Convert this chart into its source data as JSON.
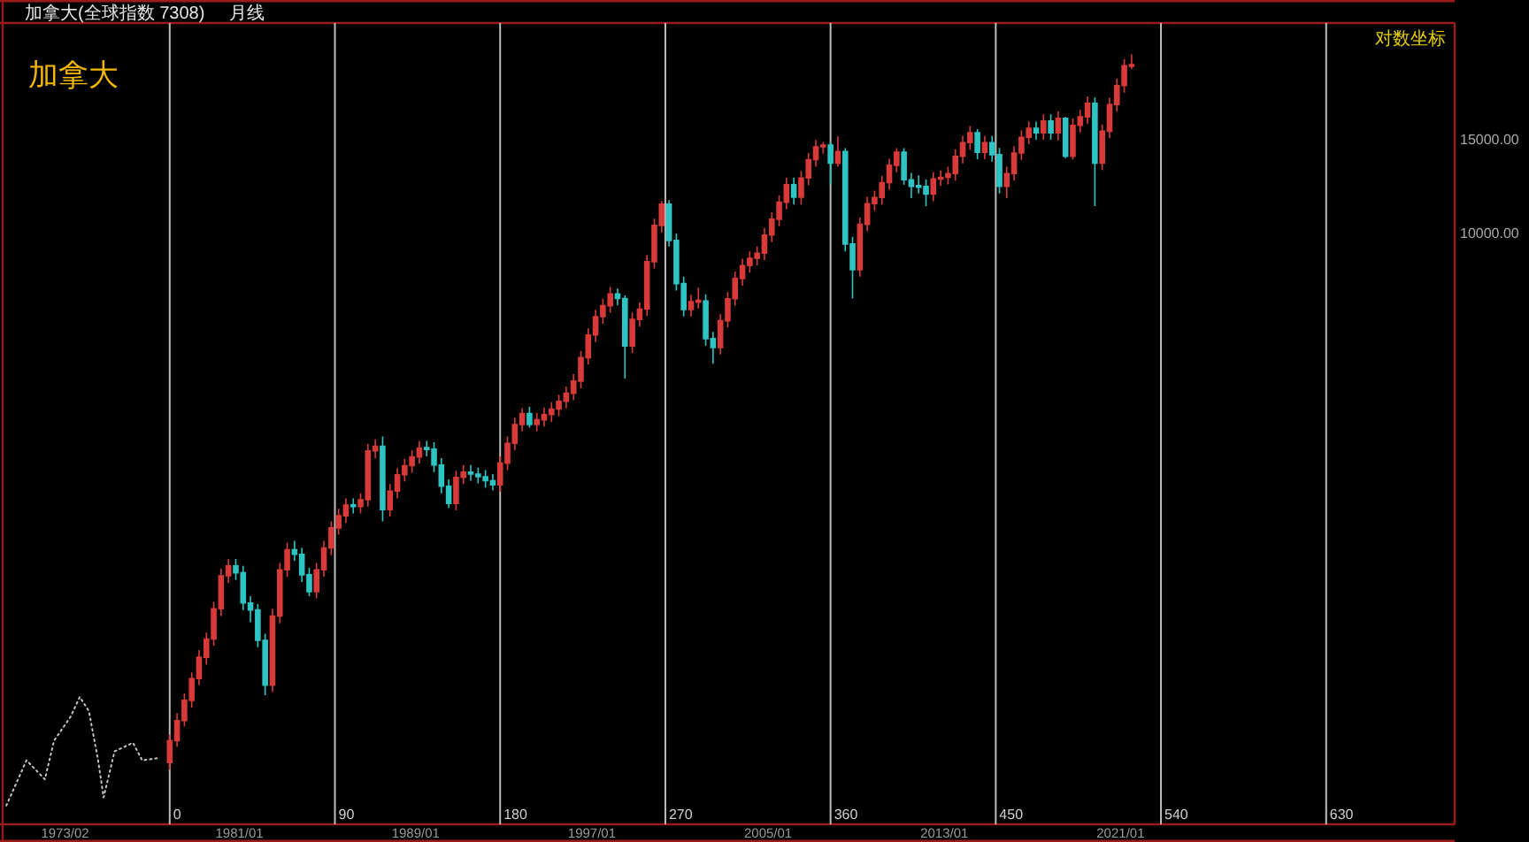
{
  "chart_data": {
    "type": "candlestick",
    "title": "加拿大",
    "subtitle": "加拿大(全球指数 7308)",
    "annotations": [
      "月线",
      "对数坐标"
    ],
    "x": [
      "1977-11",
      "1978-03",
      "1978-07",
      "1978-11",
      "1979-03",
      "1979-07",
      "1979-11",
      "1980-03",
      "1980-07",
      "1980-11",
      "1981-03",
      "1981-07",
      "1981-11",
      "1982-03",
      "1982-07",
      "1982-11",
      "1983-03",
      "1983-07",
      "1983-11",
      "1984-03",
      "1984-07",
      "1984-11",
      "1985-03",
      "1985-07",
      "1985-11",
      "1986-03",
      "1986-07",
      "1986-11",
      "1987-03",
      "1987-07",
      "1987-11",
      "1988-03",
      "1988-07",
      "1988-11",
      "1989-03",
      "1989-07",
      "1989-11",
      "1990-03",
      "1990-07",
      "1990-11",
      "1991-03",
      "1991-07",
      "1991-11",
      "1992-03",
      "1992-07",
      "1992-11",
      "1993-03",
      "1993-07",
      "1993-11",
      "1994-03",
      "1994-07",
      "1994-11",
      "1995-03",
      "1995-07",
      "1995-11",
      "1996-03",
      "1996-07",
      "1996-11",
      "1997-03",
      "1997-07",
      "1997-11",
      "1998-03",
      "1998-07",
      "1998-11",
      "1999-03",
      "1999-07",
      "1999-11",
      "2000-03",
      "2000-07",
      "2000-11",
      "2001-03",
      "2001-07",
      "2001-11",
      "2002-03",
      "2002-07",
      "2002-11",
      "2003-03",
      "2003-07",
      "2003-11",
      "2004-03",
      "2004-07",
      "2004-11",
      "2005-03",
      "2005-07",
      "2005-11",
      "2006-03",
      "2006-07",
      "2006-11",
      "2007-03",
      "2007-07",
      "2007-11",
      "2008-03",
      "2008-07",
      "2008-11",
      "2009-03",
      "2009-07",
      "2009-11",
      "2010-03",
      "2010-07",
      "2010-11",
      "2011-03",
      "2011-07",
      "2011-11",
      "2012-03",
      "2012-07",
      "2012-11",
      "2013-03",
      "2013-07",
      "2013-11",
      "2014-03",
      "2014-07",
      "2014-11",
      "2015-03",
      "2015-07",
      "2015-11",
      "2016-03",
      "2016-07",
      "2016-11",
      "2017-03",
      "2017-07",
      "2017-11",
      "2018-03",
      "2018-07",
      "2018-11",
      "2019-03",
      "2019-07",
      "2019-11",
      "2020-03",
      "2020-07",
      "2020-11",
      "2021-03",
      "2021-07"
    ],
    "ohlc": [
      [
        1000,
        1130,
        970,
        1100
      ],
      [
        1100,
        1240,
        1070,
        1200
      ],
      [
        1200,
        1350,
        1170,
        1310
      ],
      [
        1310,
        1480,
        1270,
        1440
      ],
      [
        1440,
        1630,
        1400,
        1580
      ],
      [
        1580,
        1760,
        1530,
        1710
      ],
      [
        1710,
        2010,
        1660,
        1950
      ],
      [
        1950,
        2320,
        1890,
        2250
      ],
      [
        2250,
        2420,
        2180,
        2350
      ],
      [
        2350,
        2420,
        2210,
        2280
      ],
      [
        2280,
        2350,
        1940,
        2000
      ],
      [
        2000,
        2060,
        1840,
        1940
      ],
      [
        1940,
        1990,
        1650,
        1700
      ],
      [
        1700,
        1750,
        1340,
        1400
      ],
      [
        1400,
        1950,
        1360,
        1890
      ],
      [
        1890,
        2380,
        1830,
        2310
      ],
      [
        2310,
        2600,
        2240,
        2520
      ],
      [
        2520,
        2620,
        2400,
        2470
      ],
      [
        2470,
        2540,
        2190,
        2260
      ],
      [
        2260,
        2330,
        2060,
        2100
      ],
      [
        2100,
        2380,
        2040,
        2310
      ],
      [
        2310,
        2620,
        2240,
        2540
      ],
      [
        2540,
        2850,
        2460,
        2770
      ],
      [
        2770,
        3010,
        2690,
        2920
      ],
      [
        2920,
        3150,
        2830,
        3060
      ],
      [
        3060,
        3150,
        2950,
        3040
      ],
      [
        3040,
        3220,
        2950,
        3130
      ],
      [
        3130,
        3990,
        3040,
        3870
      ],
      [
        3870,
        4070,
        3750,
        3950
      ],
      [
        3950,
        4120,
        2850,
        3000
      ],
      [
        3000,
        3350,
        2910,
        3250
      ],
      [
        3250,
        3590,
        3150,
        3490
      ],
      [
        3490,
        3740,
        3390,
        3630
      ],
      [
        3630,
        3880,
        3520,
        3770
      ],
      [
        3770,
        4040,
        3660,
        3920
      ],
      [
        3920,
        4040,
        3780,
        3900
      ],
      [
        3900,
        4020,
        3530,
        3640
      ],
      [
        3640,
        3750,
        3220,
        3320
      ],
      [
        3320,
        3420,
        3020,
        3080
      ],
      [
        3080,
        3550,
        2990,
        3450
      ],
      [
        3450,
        3640,
        3350,
        3530
      ],
      [
        3530,
        3640,
        3400,
        3500
      ],
      [
        3500,
        3600,
        3360,
        3460
      ],
      [
        3460,
        3560,
        3300,
        3400
      ],
      [
        3400,
        3500,
        3260,
        3340
      ],
      [
        3340,
        3780,
        3240,
        3670
      ],
      [
        3670,
        4120,
        3560,
        4000
      ],
      [
        4000,
        4470,
        3880,
        4340
      ],
      [
        4340,
        4660,
        4210,
        4550
      ],
      [
        4550,
        4690,
        4280,
        4340
      ],
      [
        4340,
        4560,
        4210,
        4430
      ],
      [
        4430,
        4670,
        4300,
        4530
      ],
      [
        4530,
        4780,
        4390,
        4640
      ],
      [
        4640,
        4940,
        4500,
        4800
      ],
      [
        4800,
        5120,
        4660,
        4970
      ],
      [
        4970,
        5400,
        4820,
        5240
      ],
      [
        5240,
        5970,
        5080,
        5800
      ],
      [
        5800,
        6590,
        5630,
        6400
      ],
      [
        6400,
        7140,
        6210,
        6930
      ],
      [
        6930,
        7490,
        6720,
        7270
      ],
      [
        7270,
        7880,
        7050,
        7650
      ],
      [
        7650,
        7830,
        7280,
        7500
      ],
      [
        7500,
        7600,
        5300,
        6100
      ],
      [
        6100,
        7060,
        5920,
        6850
      ],
      [
        6850,
        7370,
        6640,
        7160
      ],
      [
        7160,
        9060,
        6950,
        8800
      ],
      [
        8800,
        10600,
        8540,
        10300
      ],
      [
        10300,
        11450,
        9990,
        11300
      ],
      [
        11300,
        11500,
        9400,
        9650
      ],
      [
        9650,
        9940,
        7760,
        8000
      ],
      [
        8000,
        8240,
        6940,
        7150
      ],
      [
        7150,
        7620,
        6940,
        7400
      ],
      [
        7400,
        7860,
        7180,
        7420
      ],
      [
        7420,
        7640,
        6110,
        6300
      ],
      [
        6300,
        6490,
        5650,
        6060
      ],
      [
        6060,
        7010,
        5880,
        6810
      ],
      [
        6810,
        7710,
        6610,
        7490
      ],
      [
        7490,
        8430,
        7270,
        8180
      ],
      [
        8180,
        8910,
        7930,
        8650
      ],
      [
        8650,
        9200,
        8390,
        8930
      ],
      [
        8930,
        9400,
        8660,
        9130
      ],
      [
        9130,
        10180,
        8860,
        9880
      ],
      [
        9880,
        10900,
        9580,
        10580
      ],
      [
        10580,
        11730,
        10260,
        11390
      ],
      [
        11390,
        12660,
        11050,
        12290
      ],
      [
        12290,
        12660,
        11290,
        11640
      ],
      [
        11640,
        13030,
        11290,
        12650
      ],
      [
        12650,
        14110,
        12270,
        13700
      ],
      [
        13700,
        14920,
        13290,
        14490
      ],
      [
        14490,
        14800,
        14060,
        14600
      ],
      [
        14600,
        14800,
        12300,
        13500
      ],
      [
        13500,
        15150,
        13300,
        14200
      ],
      [
        14200,
        14400,
        9200,
        9500
      ],
      [
        9500,
        9800,
        7500,
        8500
      ],
      [
        8500,
        10660,
        8250,
        10350
      ],
      [
        10350,
        11660,
        10040,
        11320
      ],
      [
        11320,
        11980,
        10980,
        11630
      ],
      [
        11630,
        12770,
        11280,
        12400
      ],
      [
        12400,
        13770,
        12030,
        13370
      ],
      [
        13370,
        14400,
        12970,
        14150
      ],
      [
        14150,
        14400,
        12300,
        12560
      ],
      [
        12560,
        12940,
        11600,
        12200
      ],
      [
        12200,
        12800,
        11830,
        12200
      ],
      [
        12200,
        12570,
        11200,
        11800
      ],
      [
        11800,
        12980,
        11450,
        12600
      ],
      [
        12600,
        13070,
        12220,
        12690
      ],
      [
        12690,
        13290,
        12310,
        12900
      ],
      [
        12900,
        14320,
        12510,
        13900
      ],
      [
        13900,
        15190,
        13480,
        14750
      ],
      [
        14750,
        15860,
        14310,
        15400
      ],
      [
        15400,
        15650,
        13730,
        14150
      ],
      [
        14150,
        15190,
        13730,
        14750
      ],
      [
        14750,
        15190,
        13580,
        14000
      ],
      [
        14000,
        14420,
        11830,
        12200
      ],
      [
        12200,
        13290,
        11600,
        12900
      ],
      [
        12900,
        14520,
        12510,
        14100
      ],
      [
        14100,
        15550,
        13680,
        15100
      ],
      [
        15100,
        16170,
        14650,
        15700
      ],
      [
        15700,
        16170,
        14940,
        15400
      ],
      [
        15400,
        16690,
        14940,
        16200
      ],
      [
        16200,
        16690,
        14940,
        15400
      ],
      [
        15400,
        16890,
        14900,
        16400
      ],
      [
        16400,
        16500,
        13800,
        13900
      ],
      [
        13900,
        16380,
        13700,
        15900
      ],
      [
        15900,
        17000,
        15420,
        16500
      ],
      [
        16500,
        18030,
        16010,
        17500
      ],
      [
        17500,
        17950,
        11200,
        13500
      ],
      [
        13500,
        15970,
        13100,
        15500
      ],
      [
        15500,
        17920,
        15040,
        17400
      ],
      [
        17400,
        19470,
        16880,
        18900
      ],
      [
        18900,
        21200,
        18330,
        20600
      ],
      [
        20600,
        21650,
        20300,
        20650
      ]
    ],
    "colors": [
      "#d83a3a",
      "#d83a3a",
      "#d83a3a",
      "#d83a3a",
      "#d83a3a",
      "#d83a3a",
      "#d83a3a",
      "#d83a3a",
      "#d83a3a",
      "#2fc4c4",
      "#2fc4c4",
      "#2fc4c4",
      "#2fc4c4",
      "#2fc4c4",
      "#d83a3a",
      "#d83a3a",
      "#d83a3a",
      "#2fc4c4",
      "#2fc4c4",
      "#2fc4c4",
      "#d83a3a",
      "#d83a3a",
      "#d83a3a",
      "#d83a3a",
      "#d83a3a",
      "#2fc4c4",
      "#d83a3a",
      "#d83a3a",
      "#d83a3a",
      "#2fc4c4",
      "#d83a3a",
      "#d83a3a",
      "#d83a3a",
      "#d83a3a",
      "#d83a3a",
      "#2fc4c4",
      "#2fc4c4",
      "#2fc4c4",
      "#2fc4c4",
      "#d83a3a",
      "#d83a3a",
      "#2fc4c4",
      "#2fc4c4",
      "#2fc4c4",
      "#2fc4c4",
      "#d83a3a",
      "#d83a3a",
      "#d83a3a",
      "#d83a3a",
      "#2fc4c4",
      "#d83a3a",
      "#d83a3a",
      "#d83a3a",
      "#d83a3a",
      "#d83a3a",
      "#d83a3a",
      "#d83a3a",
      "#d83a3a",
      "#d83a3a",
      "#d83a3a",
      "#d83a3a",
      "#2fc4c4",
      "#2fc4c4",
      "#d83a3a",
      "#d83a3a",
      "#d83a3a",
      "#d83a3a",
      "#d83a3a",
      "#2fc4c4",
      "#2fc4c4",
      "#2fc4c4",
      "#d83a3a",
      "#d83a3a",
      "#2fc4c4",
      "#2fc4c4",
      "#d83a3a",
      "#d83a3a",
      "#d83a3a",
      "#d83a3a",
      "#d83a3a",
      "#d83a3a",
      "#d83a3a",
      "#d83a3a",
      "#d83a3a",
      "#d83a3a",
      "#2fc4c4",
      "#d83a3a",
      "#d83a3a",
      "#d83a3a",
      "#d83a3a",
      "#2fc4c4",
      "#d83a3a",
      "#2fc4c4",
      "#2fc4c4",
      "#d83a3a",
      "#d83a3a",
      "#d83a3a",
      "#d83a3a",
      "#d83a3a",
      "#d83a3a",
      "#2fc4c4",
      "#2fc4c4",
      "#2fc4c4",
      "#2fc4c4",
      "#d83a3a",
      "#d83a3a",
      "#d83a3a",
      "#d83a3a",
      "#d83a3a",
      "#d83a3a",
      "#2fc4c4",
      "#d83a3a",
      "#2fc4c4",
      "#2fc4c4",
      "#d83a3a",
      "#d83a3a",
      "#d83a3a",
      "#d83a3a",
      "#2fc4c4",
      "#d83a3a",
      "#2fc4c4",
      "#d83a3a",
      "#2fc4c4",
      "#d83a3a",
      "#d83a3a",
      "#d83a3a",
      "#2fc4c4",
      "#d83a3a",
      "#d83a3a",
      "#d83a3a",
      "#d83a3a",
      "#d83a3a"
    ],
    "series": [
      {
        "type": "line",
        "color": "#c4c4c4",
        "line_style": "dotted",
        "x": [
          "1970-06",
          "1971-05",
          "1972-03",
          "1972-08",
          "1973-05",
          "1973-10",
          "1974-03",
          "1974-08",
          "1974-11",
          "1975-05",
          "1976-03",
          "1976-08",
          "1977-05"
        ],
        "values": [
          830,
          1010,
          930,
          1100,
          1220,
          1330,
          1250,
          1010,
          860,
          1050,
          1090,
          1010,
          1020
        ]
      }
    ],
    "xlim": [
      "1970-04",
      "2036-03"
    ],
    "xticks": [
      {
        "value": "1973-02",
        "label": "1973/02"
      },
      {
        "value": "1981-01",
        "label": "1981/01"
      },
      {
        "value": "1989-01",
        "label": "1989/01"
      },
      {
        "value": "1997-01",
        "label": "1997/01"
      },
      {
        "value": "2005-01",
        "label": "2005/01"
      },
      {
        "value": "2013-01",
        "label": "2013/01"
      },
      {
        "value": "2021-01",
        "label": "2021/01"
      }
    ],
    "ylim": [
      765,
      24800
    ],
    "log": true,
    "yticks": [
      {
        "value": 10000,
        "label": "10000.00"
      },
      {
        "value": 15000,
        "label": "15000.00"
      }
    ],
    "ref_lines": [
      {
        "axis": "x",
        "value": "1977-11",
        "label": "0",
        "color": "#bdbdbd"
      },
      {
        "axis": "x",
        "value": "1985-05",
        "label": "90",
        "color": "#bdbdbd"
      },
      {
        "axis": "x",
        "value": "1992-11",
        "label": "180",
        "color": "#bdbdbd"
      },
      {
        "axis": "x",
        "value": "2000-05",
        "label": "270",
        "color": "#bdbdbd"
      },
      {
        "axis": "x",
        "value": "2007-11",
        "label": "360",
        "color": "#bdbdbd"
      },
      {
        "axis": "x",
        "value": "2015-05",
        "label": "450",
        "color": "#bdbdbd"
      },
      {
        "axis": "x",
        "value": "2022-11",
        "label": "540",
        "color": "#bdbdbd"
      },
      {
        "axis": "x",
        "value": "2030-05",
        "label": "630",
        "color": "#bdbdbd"
      }
    ]
  }
}
